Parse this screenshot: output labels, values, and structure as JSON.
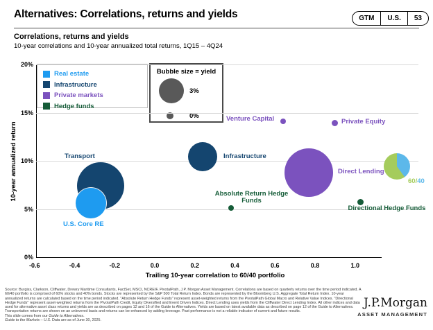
{
  "header": {
    "title": "Alternatives: Correlations, returns and yields",
    "badge": {
      "gtm": "GTM",
      "region": "U.S.",
      "page": "53"
    }
  },
  "section": {
    "heading": "Correlations, returns and yields",
    "subheading": "10-year correlations and 10-year annualized total returns, 1Q15 – 4Q24"
  },
  "legend": {
    "items": [
      {
        "label": "Real estate",
        "color": "#1E9BF0"
      },
      {
        "label": "Infrastructure",
        "color": "#14456F"
      },
      {
        "label": "Private markets",
        "color": "#7B52BE"
      },
      {
        "label": "Hedge funds",
        "color": "#155C38"
      }
    ]
  },
  "bubble_legend": {
    "title": "Bubble size = yield",
    "big_label": "3%",
    "small_label": "0%",
    "bubble_color": "#595959"
  },
  "chart_data": {
    "type": "scatter",
    "title": "Correlations, returns and yields",
    "period": "1Q15 – 4Q24",
    "xlabel": "Trailing 10-year correlation to 60/40 portfolio",
    "ylabel": "10-year annualized return",
    "xlim": [
      -0.6,
      1.1
    ],
    "ylim": [
      0,
      20
    ],
    "x_tick_labels": [
      "-0.6",
      "-0.4",
      "-0.2",
      "0.0",
      "0.2",
      "0.4",
      "0.6",
      "0.8",
      "1.0"
    ],
    "y_tick_labels": [
      "0%",
      "5%",
      "10%",
      "15%",
      "20%"
    ],
    "grid": "horizontal",
    "bubble_size_encodes": "yield",
    "points": [
      {
        "id": "infrastructure",
        "name": "Infrastructure",
        "group": "Infrastructure",
        "correlation": 0.24,
        "return_pct": 10.4,
        "yield_pct_approx": 3.8,
        "radius_px": 21,
        "color": "#14456F"
      },
      {
        "id": "transport",
        "name": "Transport",
        "group": "Infrastructure",
        "correlation": -0.27,
        "return_pct": 7.4,
        "yield_pct_approx": 6.8,
        "radius_px": 34,
        "color": "#14456F"
      },
      {
        "id": "us-core-re",
        "name": "U.S. Core RE",
        "group": "Real estate",
        "correlation": -0.32,
        "return_pct": 5.6,
        "yield_pct_approx": 4.0,
        "radius_px": 22,
        "color": "#1E9BF0"
      },
      {
        "id": "direct-lending",
        "name": "Direct Lending",
        "group": "Private markets",
        "correlation": 0.77,
        "return_pct": 8.8,
        "yield_pct_approx": 7.0,
        "radius_px": 35,
        "color": "#7B52BE"
      },
      {
        "id": "venture-capital",
        "name": "Venture Capital",
        "group": "Private markets",
        "correlation": 0.64,
        "return_pct": 14.1,
        "yield_pct_approx": 0.0,
        "radius_px": 4,
        "color": "#7B52BE"
      },
      {
        "id": "private-equity",
        "name": "Private Equity",
        "group": "Private markets",
        "correlation": 0.9,
        "return_pct": 13.9,
        "yield_pct_approx": 0.0,
        "radius_px": 4.5,
        "color": "#7B52BE"
      },
      {
        "id": "absolute-return-hedge-funds",
        "name": "Absolute Return Hedge Funds",
        "group": "Hedge funds",
        "correlation": 0.38,
        "return_pct": 5.1,
        "yield_pct_approx": 0.0,
        "radius_px": 4,
        "color": "#155C38"
      },
      {
        "id": "directional-hedge-funds",
        "name": "Directional Hedge Funds",
        "group": "Hedge funds",
        "correlation": 1.0,
        "return_pct": 5.8,
        "yield_pct_approx": 0.0,
        "radius_px": 4.5,
        "color": "#155C38"
      }
    ],
    "benchmark_marker": {
      "id": "sixty-forty",
      "name": "60/40",
      "marker": "pie",
      "return_pct": 9.4,
      "radius_px": 19,
      "slices": [
        {
          "label": "60",
          "pct": 60,
          "color": "#A5CC5C"
        },
        {
          "label": "40",
          "pct": 40,
          "color": "#5CB8EA"
        }
      ],
      "label_parts": [
        {
          "text": "60/",
          "color": "#A5CC5C"
        },
        {
          "text": "40",
          "color": "#5CB8EA"
        }
      ]
    }
  },
  "footer": {
    "source": "Source: Burgiss, Clarkson, Cliffwater, Drewry Maritime Consultants, FactSet, MSCI, NCREIF, PivotalPath, J.P. Morgan Asset Management. Correlations are based on quarterly returns over the time period indicated. A 60/40 portfolio is comprised of 60% stocks and 40% bonds. Stocks are represented by the S&P 500 Total Return Index. Bonds are represented by the Bloomberg U.S. Aggregate Total Return Index. 10-year annualized returns are calculated based on the time period indicated. \"Absolute Return Hedge Funds\" represent asset-weighted returns from the PivotalPath Global Macro and Relative Value Indices. \"Directional Hedge Funds\" represent asset-weighted returns from the PivotalPath Credit, Equity Diversified and Event Driven Indices. Direct Lending uses yields from the Cliffwater Direct Lending Index. All other indices and data used for alternative asset class returns and yields are as described on pages 12 and 16 of the Guide to Alternatives. Yields are based on latest available data as described on page 12 of the Guide to Alternatives. Transportation returns are shown on an unlevered basis and returns can be enhanced by adding leverage. Past performance is not a reliable indicator of current and future results.",
    "note_pre": "This slide comes from our ",
    "note_italic": "Guide to Alternatives",
    "note_post": ".",
    "gtm_italic": "Guide to the Markets – U.S.",
    "gtm_rest": " Data are as of June 30, 2025."
  },
  "logo": {
    "brand": "J.P.Morgan",
    "sub": "ASSET MANAGEMENT"
  }
}
